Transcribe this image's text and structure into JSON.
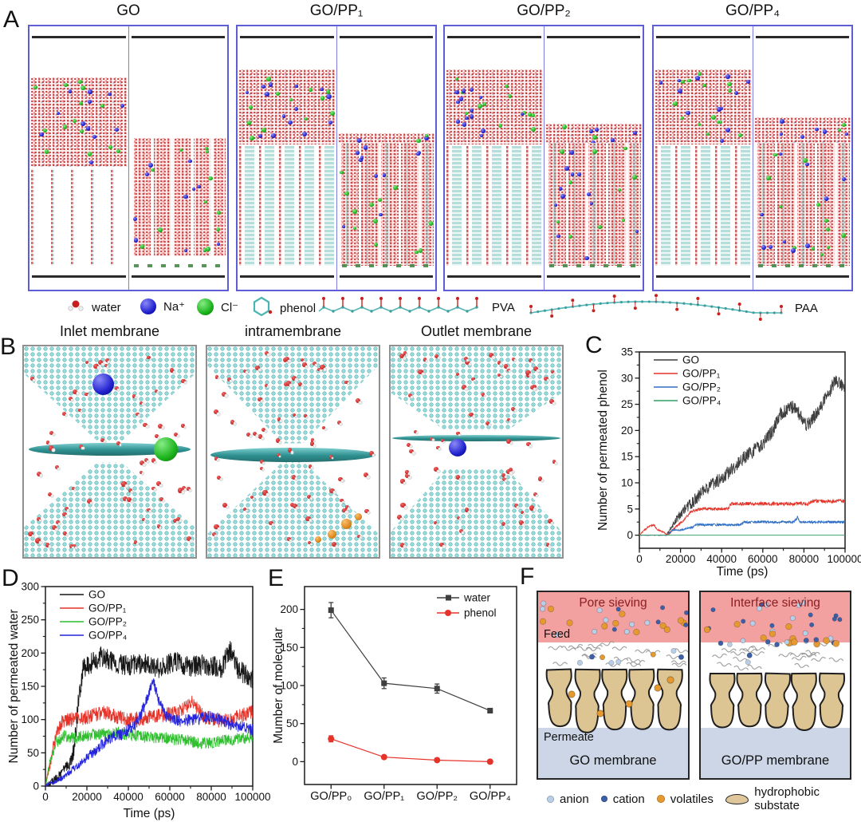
{
  "figure": {
    "panels": {
      "A": {
        "label": "A",
        "membranes": [
          {
            "title": "GO",
            "style": "go",
            "final_reservoir_h": 0
          },
          {
            "title": "GO/PP₁",
            "style": "gopp",
            "final_reservoir_h": 12
          },
          {
            "title": "GO/PP₂",
            "style": "gopp",
            "final_reservoir_h": 24
          },
          {
            "title": "GO/PP₄",
            "style": "gopp",
            "final_reservoir_h": 32
          }
        ],
        "legend": [
          {
            "label": "water"
          },
          {
            "label": "Na⁺"
          },
          {
            "label": "Cl⁻"
          },
          {
            "label": "phenol"
          },
          {
            "label": "PVA"
          },
          {
            "label": "PAA"
          }
        ]
      },
      "B": {
        "label": "B",
        "views": [
          {
            "title": "Inlet membrane"
          },
          {
            "title": "intramembrane"
          },
          {
            "title": "Outlet membrane"
          }
        ]
      },
      "C": {
        "label": "C"
      },
      "D": {
        "label": "D"
      },
      "E": {
        "label": "E"
      },
      "F": {
        "label": "F",
        "schemes": [
          {
            "title": "Pore sieving",
            "feed_label": "Feed",
            "permeate_label": "Permeate",
            "membrane_label": "GO membrane"
          },
          {
            "title": "Interface sieving",
            "membrane_label": "GO/PP membrane"
          }
        ],
        "legend": [
          {
            "label": "anion",
            "color": "#b9cfe8"
          },
          {
            "label": "cation",
            "color": "#3d5fa8"
          },
          {
            "label": "volatiles",
            "color": "#e5992e"
          },
          {
            "label": "hydrophobic substate",
            "color": "#dfc79b"
          }
        ],
        "colors": {
          "feed": "#f2a0a0",
          "permeate": "#ccd6e6",
          "substrate": "#ddc493",
          "title": "#8b1f24"
        }
      }
    }
  },
  "chart_data": [
    {
      "id": "C",
      "type": "line",
      "xlabel": "Time (ps)",
      "ylabel": "Number of permeated phenol",
      "xlim": [
        0,
        100000
      ],
      "ylim": [
        -2.5,
        35
      ],
      "xticks": [
        0,
        20000,
        40000,
        60000,
        80000,
        100000
      ],
      "yticks": [
        0,
        5,
        10,
        15,
        20,
        25,
        30,
        35
      ],
      "legend_position": "top-left",
      "series": [
        {
          "name": "GO",
          "color": "#3f3f3f",
          "noise": 1.3,
          "x": [
            0,
            13000,
            15000,
            18000,
            21000,
            25000,
            30000,
            35000,
            40000,
            45000,
            50000,
            55000,
            60000,
            65000,
            68000,
            72000,
            75000,
            78000,
            81000,
            84000,
            88000,
            92000,
            95000,
            98000,
            100000
          ],
          "y": [
            0,
            0,
            1,
            3,
            4.5,
            6,
            8,
            9.5,
            11,
            12.5,
            14.5,
            16,
            17.5,
            20,
            23,
            24,
            24.5,
            23,
            21,
            22,
            24.5,
            27,
            29.5,
            29,
            27.5
          ]
        },
        {
          "name": "GO/PP₁",
          "color": "#e63329",
          "noise": 0.4,
          "x": [
            0,
            2500,
            4000,
            7000,
            9000,
            12000,
            14000,
            16000,
            19000,
            22000,
            25000,
            30000,
            43000,
            44500,
            82000,
            84000,
            100000
          ],
          "y": [
            0,
            1,
            1.5,
            2,
            1,
            0.5,
            0,
            1,
            2,
            3,
            4.5,
            5,
            5,
            6,
            6,
            6.5,
            6.5
          ]
        },
        {
          "name": "GO/PP₂",
          "color": "#2f6fc4",
          "noise": 0.45,
          "x": [
            0,
            14000,
            16000,
            20000,
            26000,
            28000,
            49000,
            51000,
            75000,
            77000,
            78000,
            100000
          ],
          "y": [
            0,
            0,
            1,
            1,
            1.5,
            2,
            2,
            2.5,
            2.5,
            3.5,
            2.5,
            2.5
          ]
        },
        {
          "name": "GO/PP₄",
          "color": "#2f9e63",
          "noise": 0,
          "x": [
            0,
            100000
          ],
          "y": [
            0,
            0
          ]
        }
      ]
    },
    {
      "id": "D",
      "type": "line",
      "xlabel": "Time (ps)",
      "ylabel": "Number of permeated water",
      "xlim": [
        0,
        100000
      ],
      "ylim": [
        0,
        300
      ],
      "xticks": [
        0,
        20000,
        40000,
        60000,
        80000,
        100000
      ],
      "yticks": [
        0,
        50,
        100,
        150,
        200,
        250,
        300
      ],
      "legend_position": "top-left",
      "series": [
        {
          "name": "GO",
          "color": "#161616",
          "noise": 16,
          "x": [
            0,
            4000,
            8000,
            12000,
            14000,
            16000,
            18000,
            22000,
            27000,
            33000,
            40000,
            47000,
            55000,
            62000,
            70000,
            78000,
            85000,
            89000,
            93000,
            100000
          ],
          "y": [
            0,
            8,
            20,
            35,
            60,
            130,
            175,
            185,
            195,
            185,
            180,
            185,
            178,
            188,
            180,
            182,
            178,
            205,
            175,
            160
          ]
        },
        {
          "name": "GO/PP₁",
          "color": "#e63329",
          "noise": 11,
          "x": [
            0,
            2000,
            5000,
            8000,
            12000,
            20000,
            28000,
            34000,
            40000,
            48000,
            56000,
            64000,
            71000,
            76000,
            82000,
            90000,
            100000
          ],
          "y": [
            0,
            30,
            75,
            98,
            100,
            103,
            112,
            105,
            100,
            102,
            106,
            110,
            128,
            105,
            98,
            100,
            113
          ]
        },
        {
          "name": "GO/PP₂",
          "color": "#2fbf2f",
          "noise": 9,
          "x": [
            0,
            2000,
            5000,
            9000,
            15000,
            25000,
            35000,
            45000,
            55000,
            65000,
            75000,
            85000,
            100000
          ],
          "y": [
            0,
            35,
            65,
            75,
            73,
            78,
            80,
            75,
            72,
            70,
            64,
            68,
            74
          ]
        },
        {
          "name": "GO/PP₄",
          "color": "#2424dd",
          "noise": 9,
          "x": [
            0,
            4000,
            9000,
            15000,
            22000,
            30000,
            38000,
            44000,
            49000,
            52000,
            55000,
            58000,
            64000,
            72000,
            80000,
            90000,
            100000
          ],
          "y": [
            0,
            6,
            14,
            30,
            48,
            70,
            80,
            95,
            130,
            160,
            125,
            105,
            98,
            100,
            105,
            92,
            85
          ]
        }
      ]
    },
    {
      "id": "E",
      "type": "scatter-line",
      "ylabel": "Mumber of molecular",
      "categories": [
        "GO/PP₀",
        "GO/PP₁",
        "GO/PP₂",
        "GO/PP₄"
      ],
      "ylim": [
        -30,
        230
      ],
      "yticks": [
        0,
        50,
        100,
        150,
        200
      ],
      "legend_position": "top-right",
      "series": [
        {
          "name": "water",
          "color": "#3f3f3f",
          "marker": "square",
          "values": [
            199,
            103,
            96,
            67
          ],
          "errors": [
            10,
            7,
            6,
            3
          ]
        },
        {
          "name": "phenol",
          "color": "#e63329",
          "marker": "circle",
          "values": [
            30,
            6,
            2,
            0
          ],
          "errors": [
            4,
            2,
            1,
            1
          ]
        }
      ]
    }
  ]
}
